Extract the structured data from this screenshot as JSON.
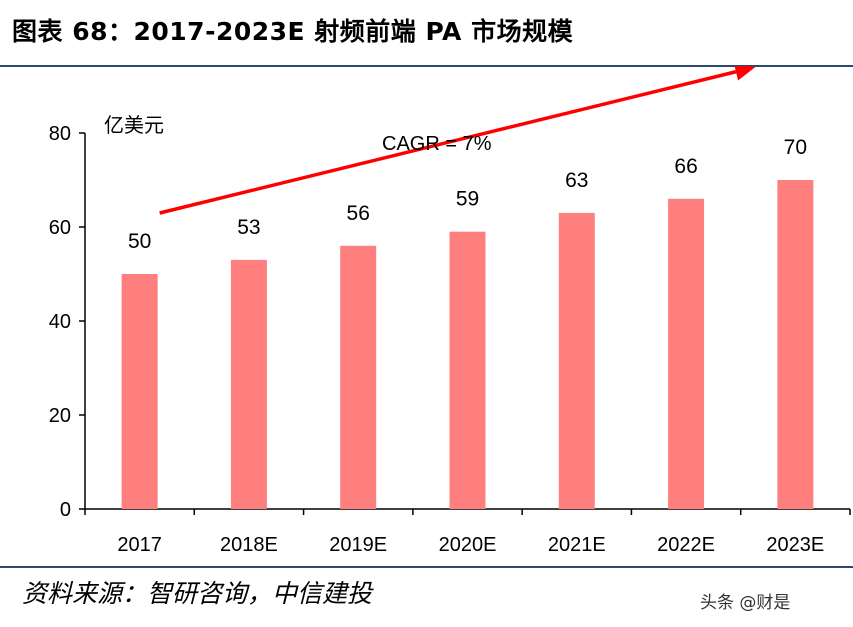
{
  "title": "图表 68：2017-2023E 射频前端 PA 市场规模",
  "source": "资料来源：智研咨询，中信建投",
  "watermark": "头条 @财是",
  "chart_data": {
    "type": "bar",
    "title": "图表 68：2017-2023E 射频前端 PA 市场规模",
    "unit_label": "亿美元",
    "categories": [
      "2017",
      "2018E",
      "2019E",
      "2020E",
      "2021E",
      "2022E",
      "2023E"
    ],
    "values": [
      50,
      53,
      56,
      59,
      63,
      66,
      70
    ],
    "ylim": [
      0,
      80
    ],
    "yticks": [
      0,
      20,
      40,
      60,
      80
    ],
    "annotation": "CAGR = 7%",
    "bar_color": "#ff7f7f",
    "arrow_color": "#ff0000",
    "grid": false
  }
}
